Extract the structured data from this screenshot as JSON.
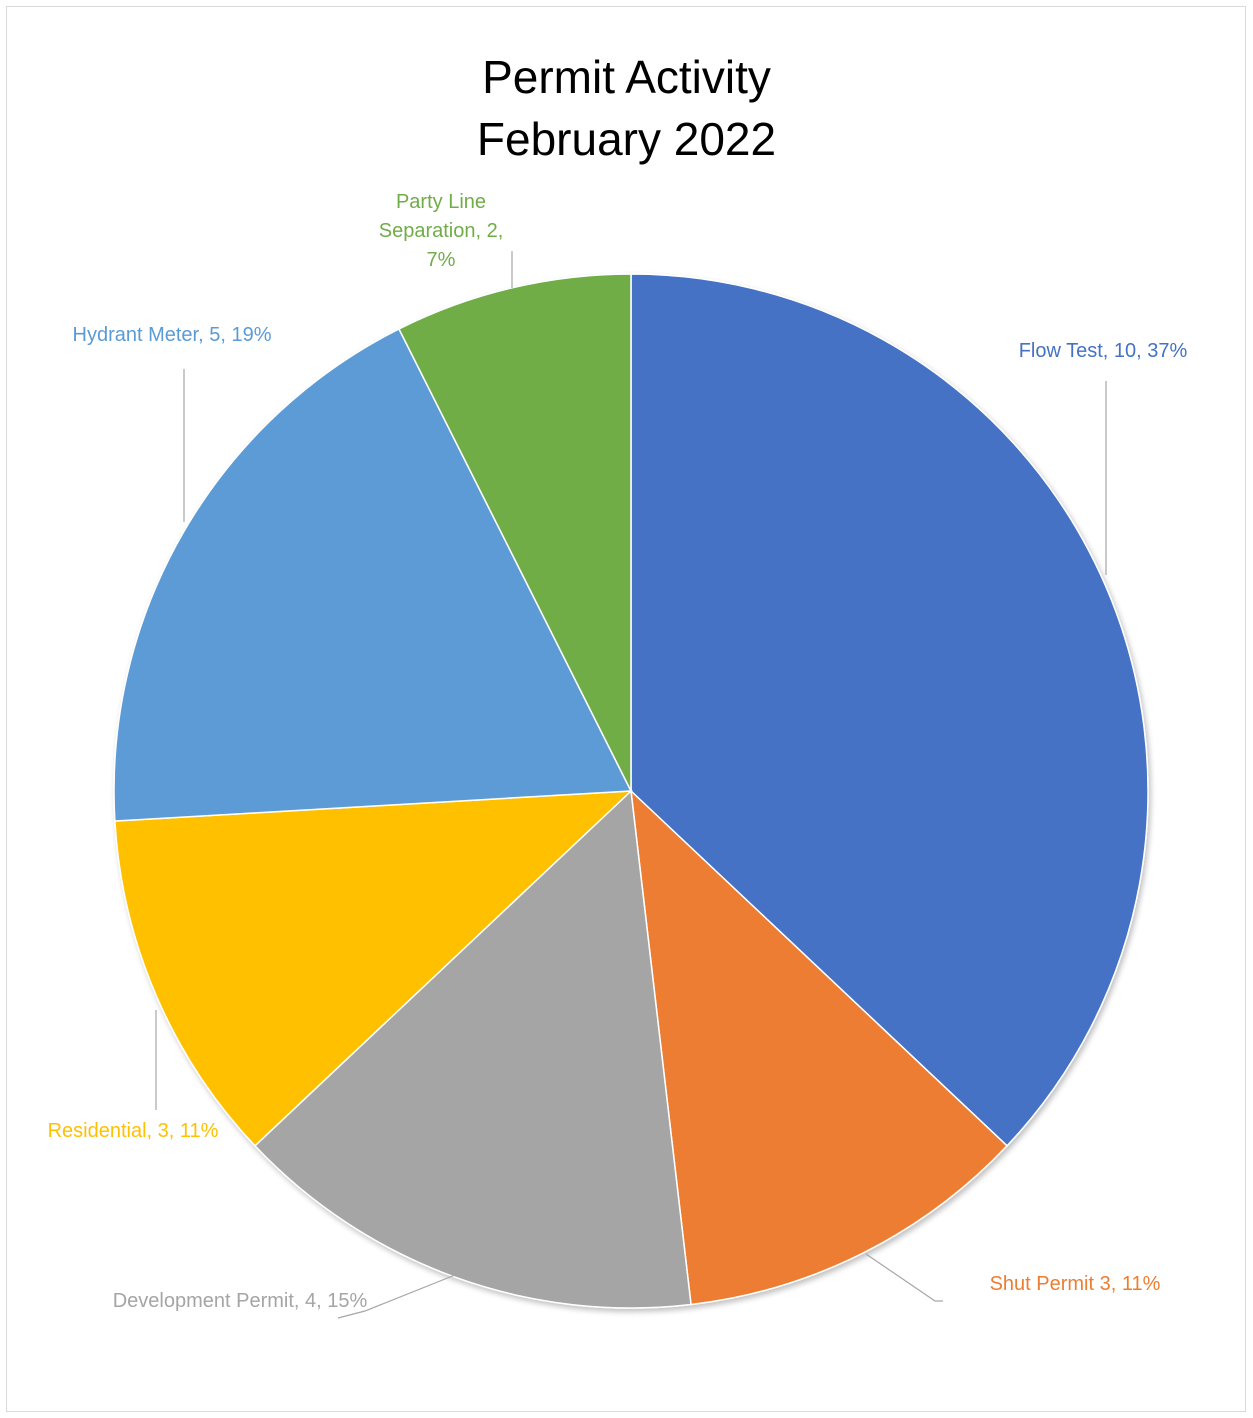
{
  "chart_data": {
    "type": "pie",
    "title_line1": "Permit Activity",
    "title_line2": "February 2022",
    "slices": [
      {
        "name": "Flow Test",
        "value": 10,
        "percent": "37%",
        "color": "#4472C4",
        "label": "Flow Test, 10, 37%"
      },
      {
        "name": "Shut Permit",
        "value": 3,
        "percent": "11%",
        "color": "#ED7D31",
        "label": "Shut Permit 3, 11%"
      },
      {
        "name": "Development Permit",
        "value": 4,
        "percent": "15%",
        "color": "#A5A5A5",
        "label": "Development Permit, 4, 15%"
      },
      {
        "name": "Residential",
        "value": 3,
        "percent": "11%",
        "color": "#FFC000",
        "label": "Residential, 3, 11%"
      },
      {
        "name": "Hydrant Meter",
        "value": 5,
        "percent": "19%",
        "color": "#5B9BD5",
        "label": "Hydrant Meter, 5, 19%"
      },
      {
        "name": "Party Line Separation",
        "value": 2,
        "percent": "7%",
        "color": "#70AD47",
        "label_lines": [
          "Party Line",
          "Separation, 2,",
          "7%"
        ]
      }
    ],
    "legend": "none (data labels)"
  }
}
